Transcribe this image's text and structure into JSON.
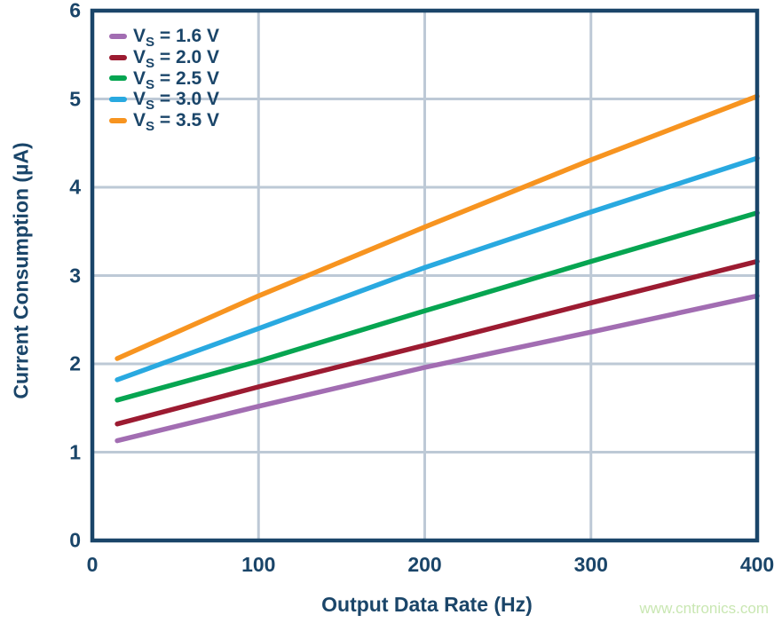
{
  "page": {
    "watermark": "www.cntronics.com"
  },
  "colors": {
    "navy": "#1A4569",
    "grid": "#BDC9D6",
    "background": "#FFFFFF",
    "watermark_green": "#C9E7B2"
  },
  "chart_data": {
    "type": "line",
    "title": "",
    "xlabel": "Output Data Rate (Hz)",
    "ylabel": "Current Consumption (µA)",
    "xlim": [
      0,
      400
    ],
    "ylim": [
      0,
      6
    ],
    "x_ticks": [
      0,
      100,
      200,
      300,
      400
    ],
    "y_ticks": [
      0,
      1,
      2,
      3,
      4,
      5,
      6
    ],
    "grid": true,
    "legend_position": "top-left-inside",
    "x": [
      15,
      100,
      200,
      300,
      400
    ],
    "series": [
      {
        "label": "VS = 1.6 V",
        "label_base": "V",
        "label_sub": "S",
        "label_rest": "= 1.6 V",
        "color": "#A26DB2",
        "values": [
          1.13,
          1.52,
          1.96,
          2.36,
          2.77
        ]
      },
      {
        "label": "VS = 2.0 V",
        "label_base": "V",
        "label_sub": "S",
        "label_rest": "= 2.0 V",
        "color": "#9C1B31",
        "values": [
          1.32,
          1.74,
          2.21,
          2.69,
          3.16
        ]
      },
      {
        "label": "VS = 2.5 V",
        "label_base": "V",
        "label_sub": "S",
        "label_rest": "= 2.5 V",
        "color": "#06A551",
        "values": [
          1.59,
          2.03,
          2.6,
          3.16,
          3.71
        ]
      },
      {
        "label": "VS = 3.0 V",
        "label_base": "V",
        "label_sub": "S",
        "label_rest": "= 3.0 V",
        "color": "#29A9E0",
        "values": [
          1.82,
          2.4,
          3.09,
          3.72,
          4.33
        ]
      },
      {
        "label": "VS = 3.5 V",
        "label_base": "V",
        "label_sub": "S",
        "label_rest": "= 3.5 V",
        "color": "#F79420",
        "values": [
          2.06,
          2.77,
          3.55,
          4.31,
          5.03
        ]
      }
    ]
  }
}
